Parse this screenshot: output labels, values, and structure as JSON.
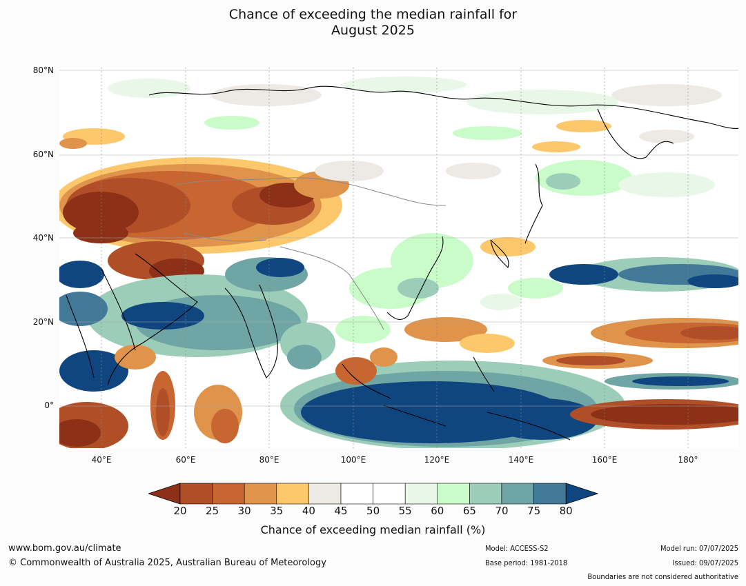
{
  "title": {
    "line1": "Chance of exceeding the median rainfall for",
    "line2": "August 2025"
  },
  "map": {
    "lat_labels": [
      "80°N",
      "60°N",
      "40°N",
      "20°N",
      "0°"
    ],
    "lon_labels": [
      "40°E",
      "60°E",
      "80°E",
      "100°E",
      "120°E",
      "140°E",
      "160°E",
      "180°"
    ],
    "extent": {
      "lon_min": 30,
      "lon_max": 192,
      "lat_min": -10,
      "lat_max": 80
    }
  },
  "colorbar": {
    "ticks": [
      "20",
      "25",
      "30",
      "35",
      "40",
      "45",
      "50",
      "55",
      "60",
      "65",
      "70",
      "75",
      "80"
    ],
    "colors": [
      "#8c3018",
      "#b04e28",
      "#c86632",
      "#e0934a",
      "#fdc86c",
      "#ede9e4",
      "#ffffff",
      "#ffffff",
      "#e8f7e8",
      "#c9fcc9",
      "#9bcdb9",
      "#6fa5a5",
      "#427898",
      "#10467f"
    ],
    "label": "Chance of exceeding median rainfall (%)"
  },
  "footer": {
    "website": "www.bom.gov.au/climate",
    "copyright": "© Commonwealth of Australia 2025, Australian Bureau of Meteorology",
    "model": "Model: ACCESS-S2",
    "base_period": "Base period: 1981-2018",
    "model_run": "Model run: 07/07/2025",
    "issued": "Issued: 09/07/2025",
    "disclaimer": "Boundaries are not considered authoritative"
  }
}
